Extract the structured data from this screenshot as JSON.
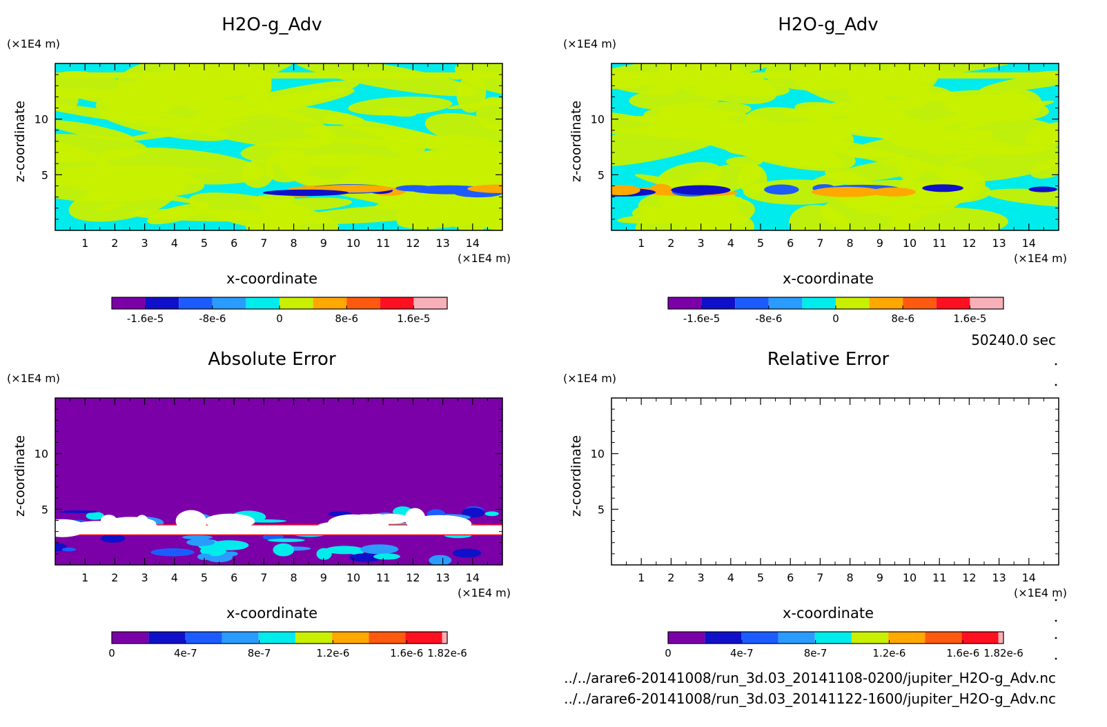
{
  "time_label": "50240.0 sec",
  "file_paths": [
    "../../arare6-20141008/run_3d.03_20141108-0200/jupiter_H2O-g_Adv.nc",
    "../../arare6-20141008/run_3d.03_20141122-1600/jupiter_H2O-g_Adv.nc"
  ],
  "chart_data": [
    {
      "type": "heatmap",
      "title": "H2O-g_Adv",
      "xlabel": "x-coordinate",
      "ylabel": "z-coordinate",
      "x_unit": "(×1E4 m)",
      "y_unit": "(×1E4 m)",
      "xlim": [
        0,
        15
      ],
      "ylim": [
        0,
        15
      ],
      "x_ticks": [
        1,
        2,
        3,
        4,
        5,
        6,
        7,
        8,
        9,
        10,
        11,
        12,
        13,
        14
      ],
      "y_ticks": [
        5,
        10
      ],
      "fill": "mixed",
      "colorbar": {
        "range": [
          -2e-05,
          2e-05
        ],
        "colors": [
          "#7b00a8",
          "#1010c8",
          "#1c5cff",
          "#2a9cff",
          "#00ecec",
          "#c8f000",
          "#ffa800",
          "#ff5a10",
          "#ff1020",
          "#f8b0b8"
        ],
        "tick_values": [
          -1.6e-05,
          -8e-06,
          0,
          8e-06,
          1.6e-05
        ],
        "tick_labels": [
          "-1.6e-5",
          "-8e-6",
          "0",
          "8e-6",
          "1.6e-5"
        ]
      }
    },
    {
      "type": "heatmap",
      "title": "H2O-g_Adv",
      "xlabel": "x-coordinate",
      "ylabel": "z-coordinate",
      "x_unit": "(×1E4 m)",
      "y_unit": "(×1E4 m)",
      "xlim": [
        0,
        15
      ],
      "ylim": [
        0,
        15
      ],
      "x_ticks": [
        1,
        2,
        3,
        4,
        5,
        6,
        7,
        8,
        9,
        10,
        11,
        12,
        13,
        14
      ],
      "y_ticks": [
        5,
        10
      ],
      "fill": "mixed",
      "colorbar": {
        "range": [
          -2e-05,
          2e-05
        ],
        "colors": [
          "#7b00a8",
          "#1010c8",
          "#1c5cff",
          "#2a9cff",
          "#00ecec",
          "#c8f000",
          "#ffa800",
          "#ff5a10",
          "#ff1020",
          "#f8b0b8"
        ],
        "tick_values": [
          -1.6e-05,
          -8e-06,
          0,
          8e-06,
          1.6e-05
        ],
        "tick_labels": [
          "-1.6e-5",
          "-8e-6",
          "0",
          "8e-6",
          "1.6e-5"
        ]
      }
    },
    {
      "type": "heatmap",
      "title": "Absolute Error",
      "xlabel": "x-coordinate",
      "ylabel": "z-coordinate",
      "x_unit": "(×1E4 m)",
      "y_unit": "(×1E4 m)",
      "xlim": [
        0,
        15
      ],
      "ylim": [
        0,
        15
      ],
      "x_ticks": [
        1,
        2,
        3,
        4,
        5,
        6,
        7,
        8,
        9,
        10,
        11,
        12,
        13,
        14
      ],
      "y_ticks": [
        5,
        10
      ],
      "fill": "error",
      "colorbar": {
        "range": [
          0,
          1.82e-06
        ],
        "colors": [
          "#7b00a8",
          "#1010c8",
          "#1c5cff",
          "#2a9cff",
          "#00ecec",
          "#c8f000",
          "#ffa800",
          "#ff5a10",
          "#ff1020",
          "#f8b0b8"
        ],
        "tick_values": [
          0,
          4e-07,
          8e-07,
          1.2e-06,
          1.6e-06,
          1.82e-06
        ],
        "tick_labels": [
          "0",
          "4e-7",
          "8e-7",
          "1.2e-6",
          "1.6e-6",
          "1.82e-6"
        ]
      }
    },
    {
      "type": "heatmap",
      "title": "Relative Error",
      "xlabel": "x-coordinate",
      "ylabel": "z-coordinate",
      "x_unit": "(×1E4 m)",
      "y_unit": "(×1E4 m)",
      "xlim": [
        0,
        15
      ],
      "ylim": [
        0,
        15
      ],
      "x_ticks": [
        1,
        2,
        3,
        4,
        5,
        6,
        7,
        8,
        9,
        10,
        11,
        12,
        13,
        14
      ],
      "y_ticks": [
        5,
        10
      ],
      "fill": "empty",
      "colorbar": {
        "range": [
          0,
          1.82e-06
        ],
        "colors": [
          "#7b00a8",
          "#1010c8",
          "#1c5cff",
          "#2a9cff",
          "#00ecec",
          "#c8f000",
          "#ffa800",
          "#ff5a10",
          "#ff1020",
          "#f8b0b8"
        ],
        "tick_values": [
          0,
          4e-07,
          8e-07,
          1.2e-06,
          1.6e-06,
          1.82e-06
        ],
        "tick_labels": [
          "0",
          "4e-7",
          "8e-7",
          "1.2e-6",
          "1.6e-6",
          "1.82e-6"
        ]
      }
    }
  ]
}
